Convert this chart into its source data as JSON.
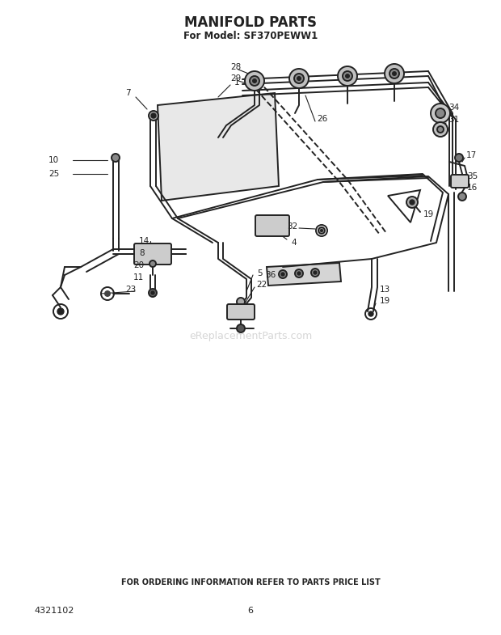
{
  "title": "MANIFOLD PARTS",
  "subtitle": "For Model: SF370PEWW1",
  "footer": "FOR ORDERING INFORMATION REFER TO PARTS PRICE LIST",
  "part_number": "4321102",
  "page_number": "6",
  "watermark": "eReplacementParts.com",
  "background_color": "#ffffff",
  "title_fontsize": 12,
  "subtitle_fontsize": 8.5,
  "footer_fontsize": 7,
  "part_number_fontsize": 8,
  "page_fontsize": 8,
  "fig_width": 6.2,
  "fig_height": 7.85,
  "dpi": 100
}
